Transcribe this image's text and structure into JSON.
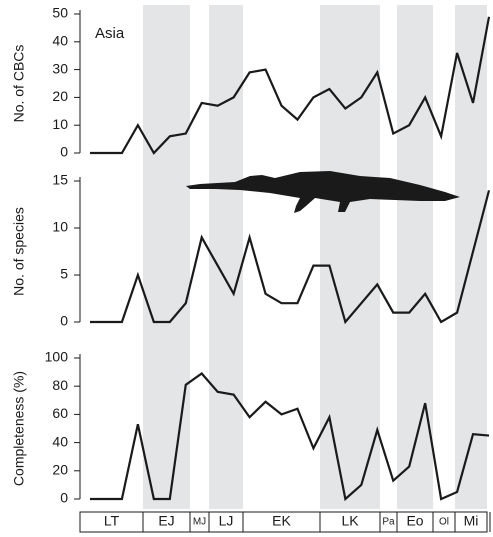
{
  "chart_data": [
    {
      "type": "line",
      "ylabel": "No. of CBCs",
      "annotation": "Asia",
      "color": "#1a1a1a",
      "categories": [
        null,
        null,
        null,
        null,
        null,
        null,
        null,
        null,
        null,
        null,
        null,
        null,
        null,
        null,
        null,
        null,
        null,
        null,
        null,
        null,
        null,
        null,
        null,
        null,
        null,
        null
      ],
      "values": [
        0,
        0,
        0,
        10,
        0,
        6,
        7,
        18,
        17,
        20,
        29,
        30,
        17,
        12,
        20,
        23,
        16,
        20,
        29,
        7,
        10,
        20,
        6,
        36,
        18,
        49
      ],
      "ylim": [
        0,
        50
      ],
      "yticks": [
        0,
        10,
        20,
        30,
        40,
        50
      ]
    },
    {
      "type": "line",
      "ylabel": "No. of species",
      "color": "#1a1a1a",
      "categories": [
        null,
        null,
        null,
        null,
        null,
        null,
        null,
        null,
        null,
        null,
        null,
        null,
        null,
        null,
        null,
        null,
        null,
        null,
        null,
        null,
        null,
        null,
        null,
        null,
        null,
        null
      ],
      "values": [
        0,
        0,
        0,
        5,
        0,
        0,
        2,
        9,
        6,
        3,
        9,
        3,
        2,
        2,
        6,
        6,
        0,
        2,
        4,
        1,
        1,
        3,
        0,
        1,
        7.5,
        14
      ],
      "ylim": [
        0,
        15
      ],
      "yticks": [
        0,
        5,
        10,
        15
      ]
    },
    {
      "type": "line",
      "ylabel": "Completeness (%)",
      "color": "#1a1a1a",
      "categories": [
        null,
        null,
        null,
        null,
        null,
        null,
        null,
        null,
        null,
        null,
        null,
        null,
        null,
        null,
        null,
        null,
        null,
        null,
        null,
        null,
        null,
        null,
        null,
        null,
        null,
        null
      ],
      "values": [
        0,
        0,
        0,
        53,
        0,
        0,
        81,
        89,
        76,
        74,
        58,
        69,
        60,
        64,
        36,
        58,
        0,
        10,
        49,
        13,
        23,
        68,
        0,
        5,
        46,
        45
      ],
      "ylim": [
        0,
        100
      ],
      "yticks": [
        0,
        20,
        40,
        60,
        80,
        100
      ]
    }
  ],
  "periods": [
    {
      "label": "LT",
      "shaded": false
    },
    {
      "label": "EJ",
      "shaded": true
    },
    {
      "label": "MJ",
      "shaded": false
    },
    {
      "label": "LJ",
      "shaded": true
    },
    {
      "label": "EK",
      "shaded": false
    },
    {
      "label": "LK",
      "shaded": true
    },
    {
      "label": "Pa",
      "shaded": false
    },
    {
      "label": "Eo",
      "shaded": true
    },
    {
      "label": "Ol",
      "shaded": false
    },
    {
      "label": "Mi",
      "shaded": true
    }
  ]
}
